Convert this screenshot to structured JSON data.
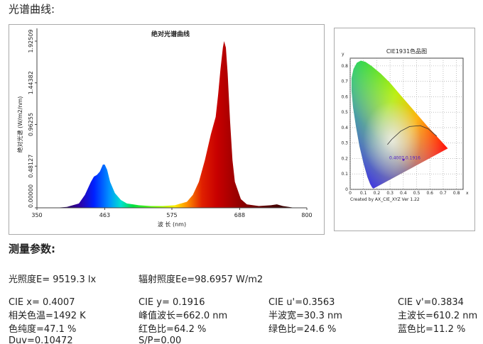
{
  "header": {
    "title": "光谱曲线:"
  },
  "chart_data": [
    {
      "type": "area",
      "title": "绝对光谱曲线",
      "x_label": "波 长 (nm)",
      "y_label": "绝对光谱 (W/m2/nm)",
      "x": [
        380,
        400,
        420,
        430,
        440,
        445,
        450,
        455,
        460,
        463,
        467,
        472,
        480,
        490,
        500,
        520,
        540,
        560,
        580,
        600,
        610,
        620,
        630,
        640,
        648,
        652,
        656,
        660,
        662,
        665,
        668,
        672,
        676,
        680,
        690,
        700,
        720,
        740,
        750,
        760,
        780
      ],
      "values": [
        0,
        0.01,
        0.05,
        0.15,
        0.3,
        0.36,
        0.38,
        0.42,
        0.5,
        0.5,
        0.44,
        0.3,
        0.17,
        0.09,
        0.05,
        0.03,
        0.02,
        0.02,
        0.03,
        0.07,
        0.15,
        0.3,
        0.55,
        0.85,
        1.05,
        1.3,
        1.6,
        1.85,
        1.925,
        1.85,
        1.55,
        1.0,
        0.55,
        0.3,
        0.1,
        0.04,
        0.02,
        0.03,
        0.04,
        0.02,
        0
      ],
      "xlim": [
        350,
        800
      ],
      "ylim": [
        0,
        1.92509
      ],
      "xticks": [
        350,
        463,
        575,
        688,
        800
      ],
      "yticks": [
        {
          "value": 0,
          "label": "0.00000"
        },
        0.48127,
        0.96255,
        1.44382,
        1.92509
      ]
    },
    {
      "type": "chromaticity",
      "title": "CIE1931色品图",
      "x_label": "x",
      "y_label": "y",
      "xlim": [
        0,
        0.85
      ],
      "ylim": [
        0,
        0.85
      ],
      "xticks": [
        0,
        0.1,
        0.2,
        0.3,
        0.4,
        0.5,
        0.6,
        0.7,
        0.8
      ],
      "yticks": [
        0,
        0.1,
        0.2,
        0.3,
        0.4,
        0.5,
        0.6,
        0.7,
        0.8
      ],
      "grid": true,
      "point": {
        "x": 0.4007,
        "y": 0.1916,
        "label": "0.4007,0.1916"
      },
      "footer": "Created by AX_CIE_XYZ Ver 1.22"
    }
  ],
  "params": {
    "title": "测量参数:",
    "rows": [
      [
        "光照度E=  9519.3 lx",
        "辐射照度Ee=98.6957 W/m2"
      ],
      [
        "CIE x= 0.4007",
        "CIE y= 0.1916",
        "CIE u'=0.3563",
        "CIE v'=0.3834"
      ],
      [
        "相关色温=1492 K",
        "峰值波长=662.0 nm",
        "半波宽=30.3 nm",
        "主波长=610.2 nm"
      ],
      [
        "色纯度=47.1 %",
        "红色比=64.2 %",
        "绿色比=24.6 %",
        "蓝色比=11.2 %"
      ],
      [
        "Duv=0.10472",
        "S/P=0.00"
      ]
    ]
  }
}
